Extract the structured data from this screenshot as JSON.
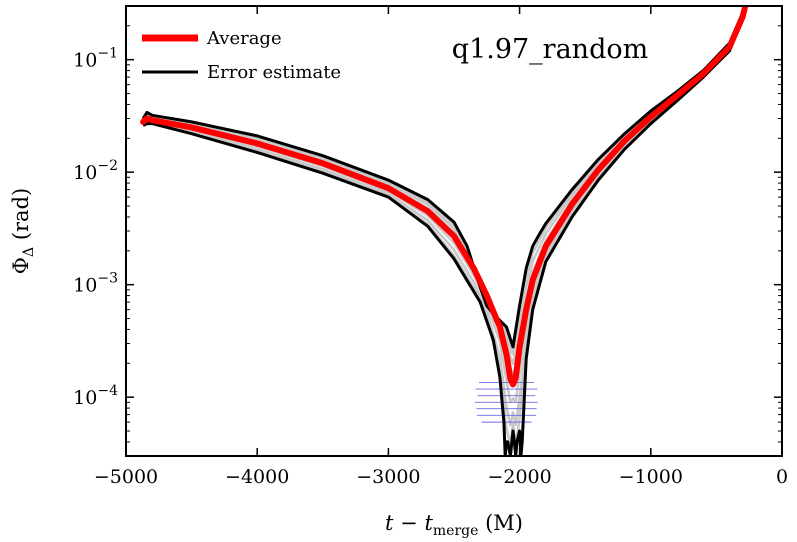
{
  "chart_data": {
    "type": "line",
    "title": "q1.97_random",
    "xlabel": "t − t_merge (M)",
    "ylabel": "Φ_Δ (rad)",
    "xlim": [
      -5000,
      0
    ],
    "ylim": [
      3e-05,
      0.3
    ],
    "yscale": "log",
    "x_ticks": [
      -5000,
      -4000,
      -3000,
      -2000,
      -1000,
      0
    ],
    "x_tick_labels": [
      "−5000",
      "−4000",
      "−3000",
      "−2000",
      "−1000",
      "0"
    ],
    "y_ticks": [
      0.0001,
      0.001,
      0.01,
      0.1
    ],
    "y_tick_labels": [
      {
        "base": "10",
        "exp": "−4"
      },
      {
        "base": "10",
        "exp": "−3"
      },
      {
        "base": "10",
        "exp": "−2"
      },
      {
        "base": "10",
        "exp": "−1"
      }
    ],
    "legend": [
      {
        "label": "Average",
        "color": "#ff0000"
      },
      {
        "label": "Error estimate",
        "color": "#000000"
      }
    ],
    "legend_location": "top-left",
    "colors": {
      "average": "#ff0000",
      "error": "#000000",
      "runs": "#c8c8c8",
      "marks": "#6a6ae8"
    },
    "series": [
      {
        "name": "Average",
        "x": [
          -4870,
          -4840,
          -4800,
          -4500,
          -4000,
          -3500,
          -3000,
          -2700,
          -2500,
          -2350,
          -2250,
          -2150,
          -2100,
          -2070,
          -2050,
          -2030,
          -2000,
          -1950,
          -1900,
          -1800,
          -1600,
          -1400,
          -1200,
          -1000,
          -800,
          -600,
          -400,
          -300,
          -280
        ],
        "y": [
          0.028,
          0.03,
          0.029,
          0.025,
          0.018,
          0.012,
          0.0072,
          0.0045,
          0.0027,
          0.0014,
          0.0008,
          0.00042,
          0.00024,
          0.000145,
          0.00013,
          0.000148,
          0.00028,
          0.0006,
          0.0011,
          0.0022,
          0.0052,
          0.0105,
          0.019,
          0.031,
          0.048,
          0.075,
          0.13,
          0.24,
          0.3
        ]
      },
      {
        "name": "Error estimate (upper)",
        "x": [
          -4870,
          -4840,
          -4800,
          -4500,
          -4000,
          -3500,
          -3000,
          -2700,
          -2500,
          -2400,
          -2300,
          -2250,
          -2200,
          -2150,
          -2100,
          -2050,
          -2000,
          -1950,
          -1900,
          -1850,
          -1800,
          -1600,
          -1400,
          -1200,
          -1000,
          -800,
          -600,
          -400,
          -300,
          -280
        ],
        "y": [
          0.03,
          0.034,
          0.032,
          0.028,
          0.021,
          0.014,
          0.0085,
          0.0057,
          0.0036,
          0.0022,
          0.00095,
          0.00065,
          0.00055,
          0.00048,
          0.00042,
          0.00028,
          0.00065,
          0.0014,
          0.0022,
          0.0028,
          0.0035,
          0.007,
          0.013,
          0.022,
          0.035,
          0.052,
          0.08,
          0.14,
          0.26,
          0.3
        ]
      },
      {
        "name": "Error estimate (lower)",
        "x": [
          -4870,
          -4840,
          -4800,
          -4500,
          -4000,
          -3500,
          -3000,
          -2700,
          -2500,
          -2300,
          -2200,
          -2150,
          -2120,
          -2110,
          -2100,
          -2090,
          -2070,
          -2050,
          -2040,
          -2030,
          -2020,
          -2000,
          -1990,
          -1980,
          -1950,
          -1900,
          -1800,
          -1600,
          -1400,
          -1200,
          -1000,
          -800,
          -600,
          -400,
          -300,
          -280
        ],
        "y": [
          0.026,
          0.027,
          0.027,
          0.022,
          0.015,
          0.0098,
          0.006,
          0.0033,
          0.0017,
          0.0007,
          0.00032,
          0.00015,
          6e-05,
          3e-05,
          4e-05,
          4e-05,
          3e-05,
          5e-05,
          4e-05,
          3e-05,
          4e-05,
          5e-05,
          3e-05,
          4e-05,
          0.00022,
          0.0006,
          0.0016,
          0.004,
          0.0085,
          0.016,
          0.027,
          0.043,
          0.07,
          0.12,
          0.23,
          0.3
        ]
      }
    ]
  }
}
